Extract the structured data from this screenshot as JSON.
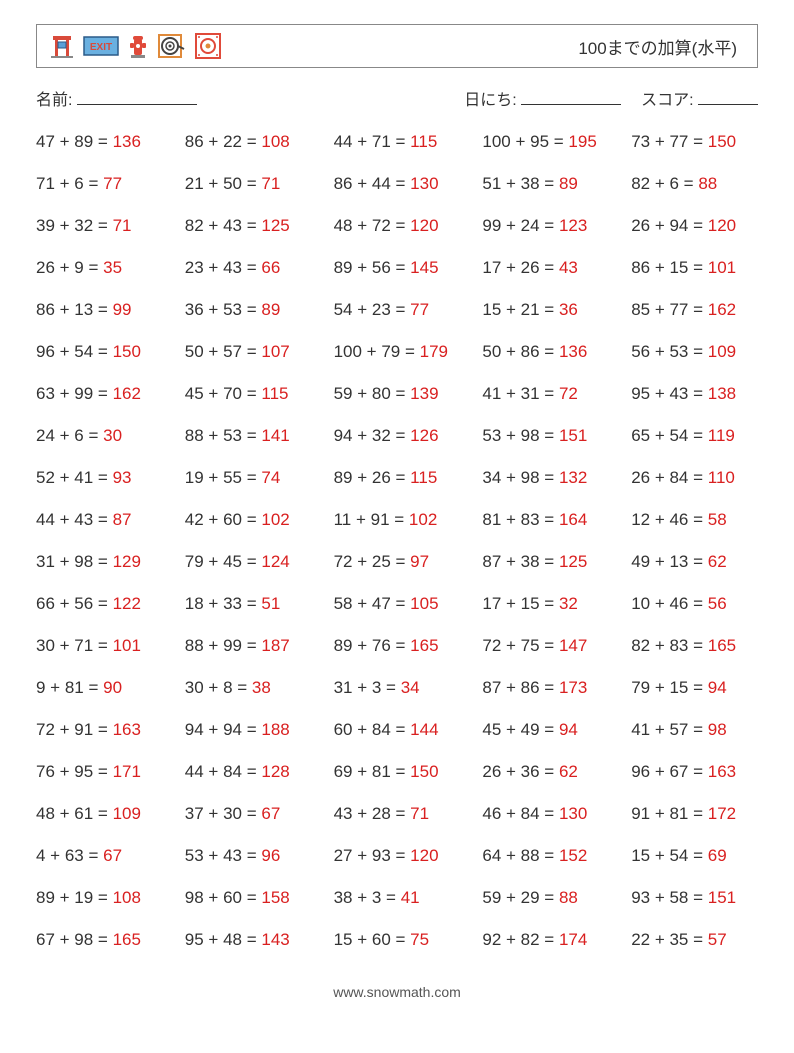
{
  "title": "100までの加算(水平)",
  "labels": {
    "name": "名前:",
    "date": "日にち:",
    "score": "スコア:"
  },
  "underline_widths": {
    "name": 120,
    "date": 100,
    "score": 60
  },
  "footer": "www.snowmath.com",
  "colors": {
    "text": "#333333",
    "answer": "#d92020",
    "border": "#888888"
  },
  "icons": [
    "torii",
    "exit-sign",
    "fire-hydrant",
    "hose-reel",
    "alarm-box"
  ],
  "problems": [
    {
      "a": 47,
      "b": 89,
      "ans": 136
    },
    {
      "a": 86,
      "b": 22,
      "ans": 108
    },
    {
      "a": 44,
      "b": 71,
      "ans": 115
    },
    {
      "a": 100,
      "b": 95,
      "ans": 195
    },
    {
      "a": 73,
      "b": 77,
      "ans": 150
    },
    {
      "a": 71,
      "b": 6,
      "ans": 77
    },
    {
      "a": 21,
      "b": 50,
      "ans": 71
    },
    {
      "a": 86,
      "b": 44,
      "ans": 130
    },
    {
      "a": 51,
      "b": 38,
      "ans": 89
    },
    {
      "a": 82,
      "b": 6,
      "ans": 88
    },
    {
      "a": 39,
      "b": 32,
      "ans": 71
    },
    {
      "a": 82,
      "b": 43,
      "ans": 125
    },
    {
      "a": 48,
      "b": 72,
      "ans": 120
    },
    {
      "a": 99,
      "b": 24,
      "ans": 123
    },
    {
      "a": 26,
      "b": 94,
      "ans": 120
    },
    {
      "a": 26,
      "b": 9,
      "ans": 35
    },
    {
      "a": 23,
      "b": 43,
      "ans": 66
    },
    {
      "a": 89,
      "b": 56,
      "ans": 145
    },
    {
      "a": 17,
      "b": 26,
      "ans": 43
    },
    {
      "a": 86,
      "b": 15,
      "ans": 101
    },
    {
      "a": 86,
      "b": 13,
      "ans": 99
    },
    {
      "a": 36,
      "b": 53,
      "ans": 89
    },
    {
      "a": 54,
      "b": 23,
      "ans": 77
    },
    {
      "a": 15,
      "b": 21,
      "ans": 36
    },
    {
      "a": 85,
      "b": 77,
      "ans": 162
    },
    {
      "a": 96,
      "b": 54,
      "ans": 150
    },
    {
      "a": 50,
      "b": 57,
      "ans": 107
    },
    {
      "a": 100,
      "b": 79,
      "ans": 179
    },
    {
      "a": 50,
      "b": 86,
      "ans": 136
    },
    {
      "a": 56,
      "b": 53,
      "ans": 109
    },
    {
      "a": 63,
      "b": 99,
      "ans": 162
    },
    {
      "a": 45,
      "b": 70,
      "ans": 115
    },
    {
      "a": 59,
      "b": 80,
      "ans": 139
    },
    {
      "a": 41,
      "b": 31,
      "ans": 72
    },
    {
      "a": 95,
      "b": 43,
      "ans": 138
    },
    {
      "a": 24,
      "b": 6,
      "ans": 30
    },
    {
      "a": 88,
      "b": 53,
      "ans": 141
    },
    {
      "a": 94,
      "b": 32,
      "ans": 126
    },
    {
      "a": 53,
      "b": 98,
      "ans": 151
    },
    {
      "a": 65,
      "b": 54,
      "ans": 119
    },
    {
      "a": 52,
      "b": 41,
      "ans": 93
    },
    {
      "a": 19,
      "b": 55,
      "ans": 74
    },
    {
      "a": 89,
      "b": 26,
      "ans": 115
    },
    {
      "a": 34,
      "b": 98,
      "ans": 132
    },
    {
      "a": 26,
      "b": 84,
      "ans": 110
    },
    {
      "a": 44,
      "b": 43,
      "ans": 87
    },
    {
      "a": 42,
      "b": 60,
      "ans": 102
    },
    {
      "a": 11,
      "b": 91,
      "ans": 102
    },
    {
      "a": 81,
      "b": 83,
      "ans": 164
    },
    {
      "a": 12,
      "b": 46,
      "ans": 58
    },
    {
      "a": 31,
      "b": 98,
      "ans": 129
    },
    {
      "a": 79,
      "b": 45,
      "ans": 124
    },
    {
      "a": 72,
      "b": 25,
      "ans": 97
    },
    {
      "a": 87,
      "b": 38,
      "ans": 125
    },
    {
      "a": 49,
      "b": 13,
      "ans": 62
    },
    {
      "a": 66,
      "b": 56,
      "ans": 122
    },
    {
      "a": 18,
      "b": 33,
      "ans": 51
    },
    {
      "a": 58,
      "b": 47,
      "ans": 105
    },
    {
      "a": 17,
      "b": 15,
      "ans": 32
    },
    {
      "a": 10,
      "b": 46,
      "ans": 56
    },
    {
      "a": 30,
      "b": 71,
      "ans": 101
    },
    {
      "a": 88,
      "b": 99,
      "ans": 187
    },
    {
      "a": 89,
      "b": 76,
      "ans": 165
    },
    {
      "a": 72,
      "b": 75,
      "ans": 147
    },
    {
      "a": 82,
      "b": 83,
      "ans": 165
    },
    {
      "a": 9,
      "b": 81,
      "ans": 90
    },
    {
      "a": 30,
      "b": 8,
      "ans": 38
    },
    {
      "a": 31,
      "b": 3,
      "ans": 34
    },
    {
      "a": 87,
      "b": 86,
      "ans": 173
    },
    {
      "a": 79,
      "b": 15,
      "ans": 94
    },
    {
      "a": 72,
      "b": 91,
      "ans": 163
    },
    {
      "a": 94,
      "b": 94,
      "ans": 188
    },
    {
      "a": 60,
      "b": 84,
      "ans": 144
    },
    {
      "a": 45,
      "b": 49,
      "ans": 94
    },
    {
      "a": 41,
      "b": 57,
      "ans": 98
    },
    {
      "a": 76,
      "b": 95,
      "ans": 171
    },
    {
      "a": 44,
      "b": 84,
      "ans": 128
    },
    {
      "a": 69,
      "b": 81,
      "ans": 150
    },
    {
      "a": 26,
      "b": 36,
      "ans": 62
    },
    {
      "a": 96,
      "b": 67,
      "ans": 163
    },
    {
      "a": 48,
      "b": 61,
      "ans": 109
    },
    {
      "a": 37,
      "b": 30,
      "ans": 67
    },
    {
      "a": 43,
      "b": 28,
      "ans": 71
    },
    {
      "a": 46,
      "b": 84,
      "ans": 130
    },
    {
      "a": 91,
      "b": 81,
      "ans": 172
    },
    {
      "a": 4,
      "b": 63,
      "ans": 67
    },
    {
      "a": 53,
      "b": 43,
      "ans": 96
    },
    {
      "a": 27,
      "b": 93,
      "ans": 120
    },
    {
      "a": 64,
      "b": 88,
      "ans": 152
    },
    {
      "a": 15,
      "b": 54,
      "ans": 69
    },
    {
      "a": 89,
      "b": 19,
      "ans": 108
    },
    {
      "a": 98,
      "b": 60,
      "ans": 158
    },
    {
      "a": 38,
      "b": 3,
      "ans": 41
    },
    {
      "a": 59,
      "b": 29,
      "ans": 88
    },
    {
      "a": 93,
      "b": 58,
      "ans": 151
    },
    {
      "a": 67,
      "b": 98,
      "ans": 165
    },
    {
      "a": 95,
      "b": 48,
      "ans": 143
    },
    {
      "a": 15,
      "b": 60,
      "ans": 75
    },
    {
      "a": 92,
      "b": 82,
      "ans": 174
    },
    {
      "a": 22,
      "b": 35,
      "ans": 57
    }
  ]
}
